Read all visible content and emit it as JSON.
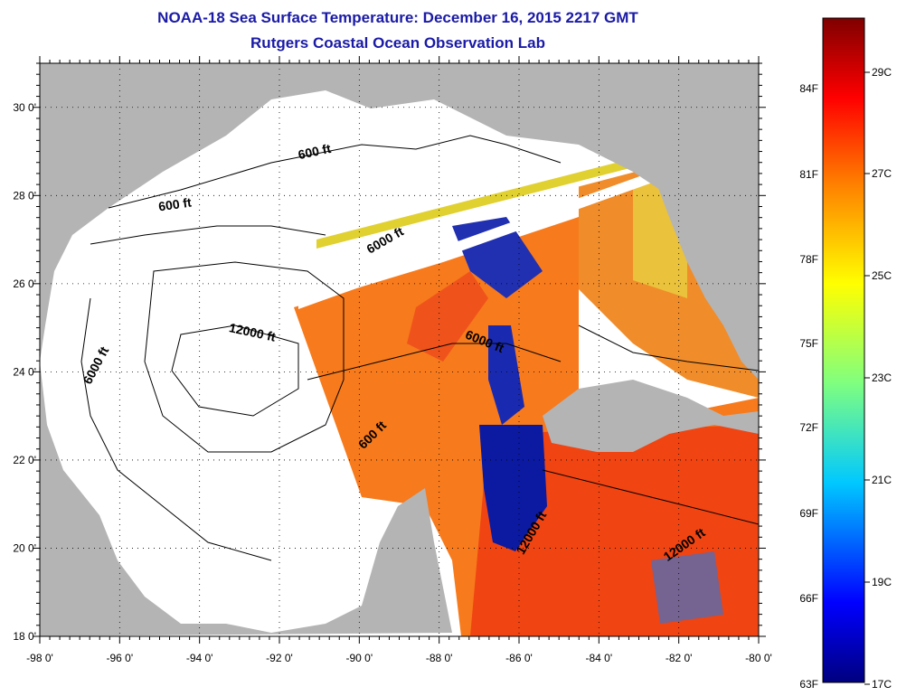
{
  "header": {
    "title": "NOAA-18 Sea Surface Temperature:  December 16, 2015 2217 GMT",
    "subtitle": "Rutgers Coastal Ocean Observation Lab"
  },
  "map": {
    "lon_range": [
      -98,
      -80
    ],
    "lat_range": [
      18,
      31
    ],
    "lon_ticks": [
      "-98 0'",
      "-96 0'",
      "-94 0'",
      "-92 0'",
      "-90 0'",
      "-88 0'",
      "-86 0'",
      "-84 0'",
      "-82 0'",
      "-80 0'"
    ],
    "lat_ticks": [
      "18 0'",
      "20 0'",
      "22 0'",
      "24 0'",
      "26 0'",
      "28 0'",
      "30 0'"
    ],
    "contour_labels": [
      {
        "text": "600 ft",
        "lon": -91.1,
        "lat": 28.9,
        "angle": -12
      },
      {
        "text": "600 ft",
        "lon": -94.6,
        "lat": 27.7,
        "angle": -8
      },
      {
        "text": "6000 ft",
        "lon": -89.3,
        "lat": 26.9,
        "angle": -30
      },
      {
        "text": "6000 ft",
        "lon": -96.5,
        "lat": 24.1,
        "angle": -62
      },
      {
        "text": "12000 ft",
        "lon": -92.7,
        "lat": 24.8,
        "angle": 12
      },
      {
        "text": "6000 ft",
        "lon": -86.9,
        "lat": 24.6,
        "angle": 22
      },
      {
        "text": "600 ft",
        "lon": -89.6,
        "lat": 22.5,
        "angle": -45
      },
      {
        "text": "12000 ft",
        "lon": -85.6,
        "lat": 20.3,
        "angle": -60
      },
      {
        "text": "12000 ft",
        "lon": -81.8,
        "lat": 20.0,
        "angle": -35
      }
    ],
    "colors": {
      "land": "#b4b4b4",
      "no_data": "#ffffff"
    }
  },
  "colorbar": {
    "f_labels": [
      "84F",
      "81F",
      "78F",
      "75F",
      "72F",
      "69F",
      "66F",
      "63F"
    ],
    "c_labels": [
      "29C",
      "27C",
      "25C",
      "23C",
      "21C",
      "19C",
      "17C"
    ]
  }
}
